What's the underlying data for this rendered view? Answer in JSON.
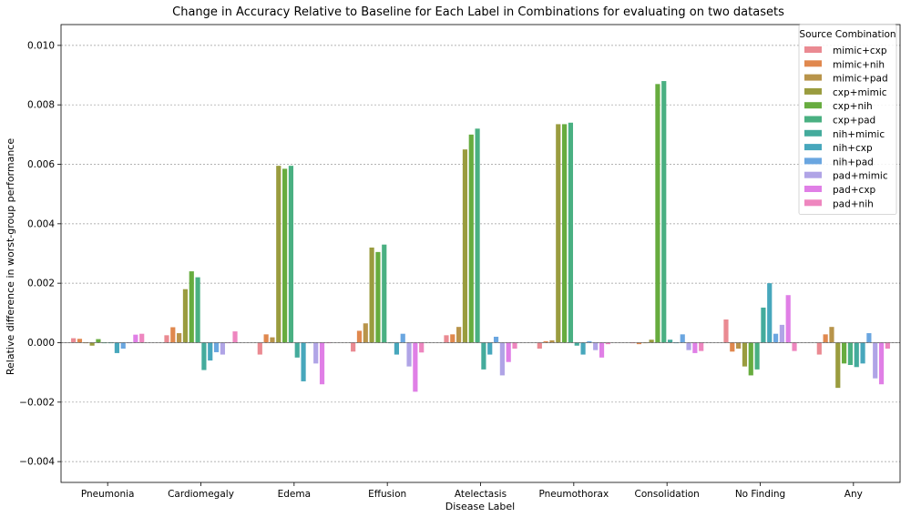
{
  "chart_data": {
    "type": "bar",
    "title": "Change in Accuracy Relative to Baseline for Each Label in Combinations for evaluating on two datasets",
    "xlabel": "Disease Label",
    "ylabel": "Relative difference in worst-group performance",
    "ylim": [
      -0.0047,
      0.0107
    ],
    "yticks": [
      -0.004,
      -0.002,
      0.0,
      0.002,
      0.004,
      0.006,
      0.008,
      0.01
    ],
    "ytick_labels": [
      "−0.004",
      "−0.002",
      "0.000",
      "0.002",
      "0.004",
      "0.006",
      "0.008",
      "0.010"
    ],
    "grid": "horizontal dotted",
    "legend": {
      "title": "Source Combination",
      "placement": "top-right"
    },
    "categories": [
      "Pneumonia",
      "Cardiomegaly",
      "Edema",
      "Effusion",
      "Atelectasis",
      "Pneumothorax",
      "Consolidation",
      "No Finding",
      "Any"
    ],
    "series": [
      {
        "name": "mimic+cxp",
        "color": "#ea8a92",
        "values": [
          0.00015,
          0.00025,
          -0.0004,
          -0.0003,
          0.00025,
          -0.0002,
          0.0,
          0.00078,
          -0.0004
        ]
      },
      {
        "name": "mimic+nih",
        "color": "#e0884e",
        "values": [
          0.00013,
          0.00052,
          0.00028,
          0.0004,
          0.00028,
          5e-05,
          -5e-05,
          -0.0003,
          0.00028
        ]
      },
      {
        "name": "mimic+pad",
        "color": "#b8944a",
        "values": [
          0.0,
          0.00032,
          0.00018,
          0.00065,
          0.00053,
          8e-05,
          0.0,
          -0.0002,
          0.00053
        ]
      },
      {
        "name": "cxp+mimic",
        "color": "#9a9c3f",
        "values": [
          -0.0001,
          0.0018,
          0.00595,
          0.0032,
          0.0065,
          0.00735,
          0.0001,
          -0.0008,
          -0.00152
        ]
      },
      {
        "name": "cxp+nih",
        "color": "#67ac3f",
        "values": [
          0.00012,
          0.0024,
          0.00585,
          0.00305,
          0.007,
          0.00735,
          0.0087,
          -0.0011,
          -0.0007
        ]
      },
      {
        "name": "cxp+pad",
        "color": "#4ab082",
        "values": [
          0.0,
          0.0022,
          0.00595,
          0.0033,
          0.0072,
          0.0074,
          0.0088,
          -0.0009,
          -0.00075
        ]
      },
      {
        "name": "nih+mimic",
        "color": "#44ab9c",
        "values": [
          0.0,
          -0.00092,
          -0.0005,
          0.0,
          -0.0009,
          -0.0001,
          0.0001,
          0.00118,
          -0.00082
        ]
      },
      {
        "name": "nih+cxp",
        "color": "#47a7bc",
        "values": [
          -0.00035,
          -0.0006,
          -0.0013,
          -0.0004,
          -0.0004,
          -0.0004,
          0.0,
          0.002,
          -0.0007
        ]
      },
      {
        "name": "nih+pad",
        "color": "#6aa6e0",
        "values": [
          -0.0002,
          -0.00032,
          0.0,
          0.0003,
          0.0002,
          5e-05,
          0.00028,
          0.0003,
          0.00032
        ]
      },
      {
        "name": "pad+mimic",
        "color": "#b0a4e6",
        "values": [
          0.0,
          -0.0004,
          -0.0007,
          -0.0008,
          -0.0011,
          -0.00025,
          -0.00025,
          0.0006,
          -0.0012
        ]
      },
      {
        "name": "pad+cxp",
        "color": "#e07fe6",
        "values": [
          0.00027,
          0.0,
          -0.0014,
          -0.00165,
          -0.00065,
          -0.0005,
          -0.00035,
          0.0016,
          -0.0014
        ]
      },
      {
        "name": "pad+nih",
        "color": "#ee86bf",
        "values": [
          0.0003,
          0.00038,
          0.0,
          -0.00033,
          -0.0002,
          -5e-05,
          -0.00028,
          -0.00028,
          -0.0002
        ]
      }
    ]
  }
}
